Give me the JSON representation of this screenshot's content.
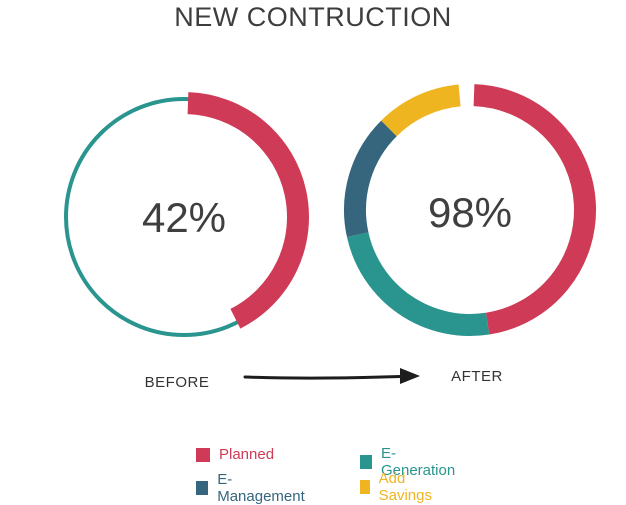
{
  "chart_data": {
    "type": "donut",
    "title": "NEW CONTRUCTION",
    "colors": {
      "Planned": "#cf3a56",
      "E-Management": "#35667e",
      "E-Generation": "#2a948e",
      "Add Savings": "#efb521",
      "track": "#2a948e"
    },
    "charts": [
      {
        "label": "BEFORE",
        "center_value": "42%",
        "segments": [
          {
            "name": "Planned",
            "value": 42
          }
        ]
      },
      {
        "label": "AFTER",
        "center_value": "98%",
        "segments": [
          {
            "name": "Planned",
            "value": 47
          },
          {
            "name": "E-Generation",
            "value": 24
          },
          {
            "name": "E-Management",
            "value": 16
          },
          {
            "name": "Add Savings",
            "value": 11
          }
        ]
      }
    ],
    "legend": [
      {
        "name": "Planned",
        "color": "#cf3a56"
      },
      {
        "name": "E-Generation",
        "color": "#2a948e"
      },
      {
        "name": "E-Management",
        "color": "#35667e"
      },
      {
        "name": "Add Savings",
        "color": "#efb521"
      }
    ]
  }
}
